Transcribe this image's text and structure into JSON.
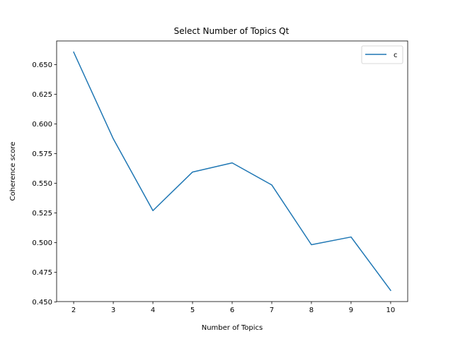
{
  "chart_data": {
    "type": "line",
    "title": "Select Number of Topics Qt",
    "xlabel": "Number of Topics",
    "ylabel": "Coherence score",
    "x": [
      2,
      3,
      4,
      5,
      6,
      7,
      8,
      9,
      10
    ],
    "series": [
      {
        "name": "c",
        "color": "#1f77b4",
        "values": [
          0.6605,
          0.5875,
          0.527,
          0.5595,
          0.5672,
          0.5486,
          0.4983,
          0.5048,
          0.4598
        ]
      }
    ],
    "xlim": [
      1.57,
      10.43
    ],
    "ylim": [
      0.4504,
      0.6699
    ],
    "xticks": [
      2,
      3,
      4,
      5,
      6,
      7,
      8,
      9,
      10
    ],
    "xtick_labels": [
      "2",
      "3",
      "4",
      "5",
      "6",
      "7",
      "8",
      "9",
      "10"
    ],
    "yticks": [
      0.45,
      0.475,
      0.5,
      0.525,
      0.55,
      0.575,
      0.6,
      0.625,
      0.65
    ],
    "ytick_labels": [
      "0.450",
      "0.475",
      "0.500",
      "0.525",
      "0.550",
      "0.575",
      "0.600",
      "0.625",
      "0.650"
    ],
    "grid": false,
    "legend_position": "top-right"
  }
}
